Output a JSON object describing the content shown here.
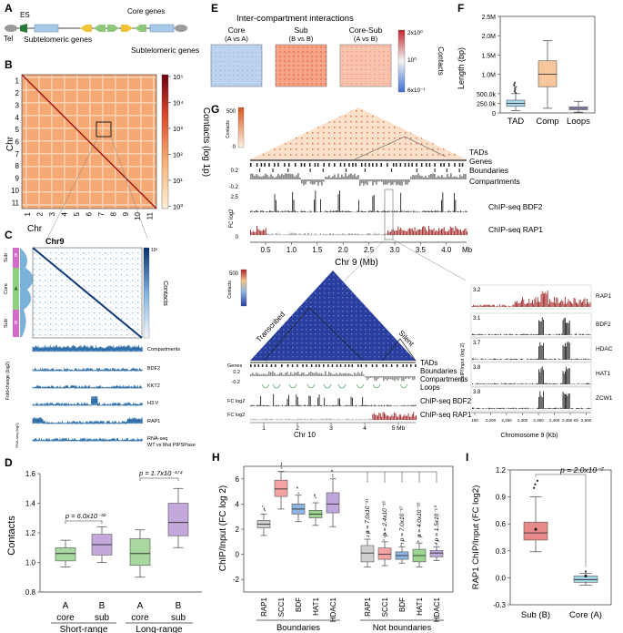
{
  "panel_labels": {
    "a": "A",
    "b": "B",
    "c": "C",
    "d": "D",
    "e": "E",
    "f": "F",
    "g": "G",
    "h": "H",
    "i": "I"
  },
  "panel_a": {
    "es": "ES",
    "tel": "Tel",
    "core_genes": "Core genes",
    "subtelomeric_left": "Subtelomeric genes",
    "subtelomeric_right": "Subtelomeric genes"
  },
  "panel_b": {
    "chromosomes": [
      "1",
      "2",
      "3",
      "4",
      "5",
      "6",
      "7",
      "8",
      "9",
      "10",
      "11"
    ],
    "xlabel": "Chr",
    "ylabel": "Chr",
    "colorbar_label": "Contacts (log 1p)",
    "colorbar_ticks": [
      "10⁵",
      "10⁴",
      "10³",
      "10²",
      "10¹",
      "10⁰"
    ]
  },
  "panel_c": {
    "title": "Chr9",
    "colorbar_label": "Contacts",
    "colorbar_top": "10³",
    "domains": [
      "Sub",
      "Core",
      "Sub"
    ],
    "domain_tags": [
      "B",
      "A",
      "B"
    ],
    "tracks": [
      "Compartments",
      "BDF2",
      "KKT2",
      "H3.V",
      "RAP1",
      "RNA-seq",
      "WT vs Mut PIPSPase"
    ],
    "track_axis": "Fold-change (log2)",
    "side_label": "RNA-seq (log2)"
  },
  "panel_d": {
    "chart_data": {
      "type": "box",
      "ylabel": "Contacts",
      "ylim": [
        0.8,
        1.6
      ],
      "yticks": [
        "0.8",
        "1.0",
        "1.2",
        "1.4",
        "1.6"
      ],
      "groups": [
        {
          "name": "Short-range",
          "pvalue": "p = 6.0x10⁻³²",
          "boxes": [
            {
              "label": "core",
              "tag": "A",
              "q1": 1.01,
              "median": 1.06,
              "q3": 1.1,
              "min": 0.97,
              "max": 1.15,
              "color": "#a8d8a0"
            },
            {
              "label": "sub",
              "tag": "B",
              "q1": 1.05,
              "median": 1.12,
              "q3": 1.19,
              "min": 1.0,
              "max": 1.24,
              "color": "#c4a8dc"
            }
          ]
        },
        {
          "name": "Long-range",
          "pvalue": "p = 1.7x10⁻¹⁷⁴",
          "boxes": [
            {
              "label": "core",
              "tag": "A",
              "q1": 0.98,
              "median": 1.06,
              "q3": 1.16,
              "min": 0.9,
              "max": 1.22,
              "color": "#a8d8a0"
            },
            {
              "label": "sub",
              "tag": "B",
              "q1": 1.18,
              "median": 1.27,
              "q3": 1.4,
              "min": 1.1,
              "max": 1.5,
              "color": "#c4a8dc"
            }
          ]
        }
      ]
    }
  },
  "panel_e": {
    "title": "Inter-compartment interactions",
    "maps": [
      {
        "name": "Core",
        "sub": "(A vs A)"
      },
      {
        "name": "Sub",
        "sub": "(B vs B)"
      },
      {
        "name": "Core-Sub",
        "sub": "(A vs B)"
      }
    ],
    "colorbar_label": "Contacts",
    "colorbar_ticks": [
      "2x10⁰",
      "10⁰",
      "6x10⁻¹"
    ]
  },
  "panel_f": {
    "chart_data": {
      "type": "box",
      "ylabel": "Length (bp)",
      "yticks": [
        "0",
        "250.0k",
        "500.0k",
        "1.0M",
        "1.5M",
        "2.0M",
        "2.5M"
      ],
      "ylim": [
        0,
        2500000
      ],
      "boxes": [
        {
          "label": "TAD",
          "q1": 170000,
          "median": 250000,
          "q3": 330000,
          "min": 60000,
          "max": 500000,
          "color": "#a6d8ec"
        },
        {
          "label": "Comp",
          "q1": 680000,
          "median": 1000000,
          "q3": 1350000,
          "min": 120000,
          "max": 1870000,
          "color": "#f7c69b"
        },
        {
          "label": "Loops",
          "q1": 80000,
          "median": 120000,
          "q3": 160000,
          "min": 20000,
          "max": 300000,
          "color": "#b6a8dc"
        }
      ]
    }
  },
  "panel_g": {
    "colorbar_label": "Contacts",
    "colorbar_top": "500",
    "colorbar_bottom": "0",
    "top_tracks": [
      "TADs",
      "Genes",
      "Boundaries",
      "Compartments",
      "ChIP-seq BDF2",
      "ChIP-seq RAP1"
    ],
    "comp_ticks": [
      "0.2",
      "-0.2"
    ],
    "fc_label": "FC log2",
    "fc_ticks": [
      "2.5",
      "0"
    ],
    "x_ticks": [
      "0.5",
      "1.0",
      "1.5",
      "2.0",
      "2.5",
      "3.0",
      "3.5",
      "4.0"
    ],
    "x_unit": "Mb",
    "xlabel": "Chr 9 (Mb)",
    "chr10": {
      "colorbar_label": "Contacts",
      "colorbar_top": "500",
      "transcribed": "Transcribed",
      "silent": "Silent",
      "tracks": [
        "TADs",
        "Boundaries",
        "Compartments",
        "Loops",
        "ChIP-seq BDF2",
        "ChIP-seq RAP1"
      ],
      "genes": "Genes",
      "comp_ticks": [
        "0.2",
        "-0.2"
      ],
      "fc_label": "FC log2",
      "x_ticks": [
        "1",
        "2",
        "3",
        "4",
        "5 Mb"
      ],
      "xlabel": "Chr 10"
    },
    "zoom": {
      "ylabel": "ChIP/Input (log 2)",
      "tracks": [
        {
          "name": "RAP1",
          "max": "3.2"
        },
        {
          "name": "BDF2",
          "max": "3.1"
        },
        {
          "name": "HDAC",
          "max": "3.7"
        },
        {
          "name": "HAT1",
          "max": "3.8"
        },
        {
          "name": "ZCW1",
          "max": "3.8"
        }
      ],
      "x_ticks": [
        "150",
        "2,200",
        "2,250",
        "2,300",
        "2,350",
        "2,400",
        "2,450 Kb",
        "2,500"
      ],
      "xlabel": "Chromosome 9 (Kb)"
    }
  },
  "panel_h": {
    "chart_data": {
      "type": "box",
      "ylabel": "ChIP/Input (FC log 2)",
      "ylim": [
        -3,
        7
      ],
      "yticks": [
        "-2",
        "0",
        "2",
        "4",
        "6"
      ],
      "groups": [
        {
          "name": "Boundaries",
          "boxes": [
            {
              "label": "RAP1",
              "q1": 2.1,
              "median": 2.4,
              "q3": 2.7,
              "min": 1.5,
              "max": 3.2,
              "color": "#cfcfcf"
            },
            {
              "label": "SCC1",
              "q1": 4.6,
              "median": 5.2,
              "q3": 5.9,
              "min": 3.6,
              "max": 6.6,
              "color": "#f4a3a3"
            },
            {
              "label": "BDF",
              "q1": 3.2,
              "median": 3.6,
              "q3": 4.0,
              "min": 2.6,
              "max": 4.7,
              "color": "#8fb4e2"
            },
            {
              "label": "HAT1",
              "q1": 2.9,
              "median": 3.2,
              "q3": 3.5,
              "min": 2.3,
              "max": 4.1,
              "color": "#9cd38f"
            },
            {
              "label": "HDAC1",
              "q1": 3.3,
              "median": 4.0,
              "q3": 4.9,
              "min": 2.2,
              "max": 6.0,
              "color": "#bfa6dc"
            }
          ]
        },
        {
          "name": "Not boundaries",
          "boxes": [
            {
              "label": "RAP1",
              "pvalue": "p = 7.0x10⁻¹¹",
              "q1": -0.6,
              "median": 0.1,
              "q3": 0.7,
              "min": -1.0,
              "max": 1.2,
              "color": "#cfcfcf"
            },
            {
              "label": "SCC1",
              "pvalue": "p = 2.4x10⁻¹⁵",
              "q1": -0.4,
              "median": 0.0,
              "q3": 0.5,
              "min": -0.9,
              "max": 1.0,
              "color": "#f4a3a3"
            },
            {
              "label": "BDF",
              "pvalue": "p = 7.0x10⁻¹⁷",
              "q1": -0.4,
              "median": -0.1,
              "q3": 0.2,
              "min": -0.7,
              "max": 0.6,
              "color": "#8fb4e2"
            },
            {
              "label": "HAT1",
              "pvalue": "p = 4.0x10⁻¹⁵",
              "q1": -0.6,
              "median": -0.1,
              "q3": 0.4,
              "min": -1.0,
              "max": 0.9,
              "color": "#9cd38f"
            },
            {
              "label": "HDAC1",
              "pvalue": "p = 1.5x10⁻¹⁰",
              "q1": -0.2,
              "median": 0.1,
              "q3": 0.3,
              "min": -0.5,
              "max": 0.6,
              "color": "#bfa6dc"
            }
          ]
        }
      ]
    }
  },
  "panel_i": {
    "chart_data": {
      "type": "box",
      "ylabel": "RAP1 ChIP/Input (FC log2)",
      "ylim": [
        -0.3,
        1.2
      ],
      "yticks": [
        "-0.3",
        "0.0",
        "0.3",
        "0.6",
        "0.9",
        "1.2"
      ],
      "pvalue": "p = 2.0x10⁻⁷",
      "boxes": [
        {
          "label": "Sub (B)",
          "q1": 0.42,
          "median": 0.5,
          "q3": 0.62,
          "min": 0.29,
          "max": 0.9,
          "color": "#e98a8a"
        },
        {
          "label": "Core (A)",
          "q1": -0.05,
          "median": -0.02,
          "q3": 0.02,
          "min": -0.08,
          "max": 0.05,
          "color": "#a6d8ec"
        }
      ]
    }
  }
}
